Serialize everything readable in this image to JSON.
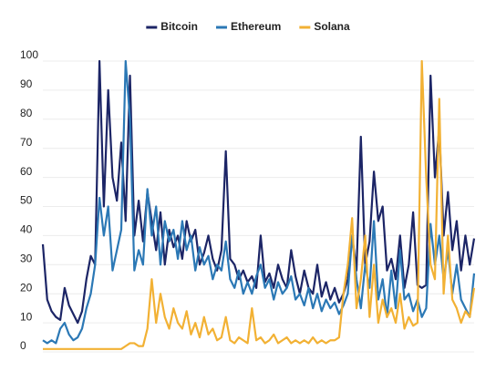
{
  "chart_data": {
    "type": "line",
    "categories": [
      null,
      null,
      null,
      null,
      null,
      null,
      null,
      null,
      null,
      null,
      null,
      null,
      null,
      null,
      null,
      null,
      null,
      null,
      null,
      null,
      null,
      null,
      null,
      null,
      null,
      null,
      null,
      null,
      null,
      null,
      null,
      null,
      null,
      null,
      null,
      null,
      null,
      null,
      null,
      null,
      null,
      null,
      null,
      null,
      null,
      null,
      null,
      null,
      null,
      null,
      null,
      null,
      null,
      null,
      null,
      null,
      null,
      null,
      null,
      null,
      null,
      null,
      null,
      null,
      null,
      null,
      null,
      null,
      null,
      null,
      null,
      null,
      null,
      null,
      null,
      null,
      null,
      null,
      null,
      null,
      null,
      null,
      null,
      null,
      null,
      null,
      null,
      null,
      null,
      null,
      null,
      null,
      null,
      null,
      null,
      null,
      null,
      null,
      null,
      null
    ],
    "series": [
      {
        "name": "Bitcoin",
        "color": "#1c2566",
        "values": [
          37,
          18,
          14,
          12,
          11,
          22,
          16,
          13,
          10,
          14,
          25,
          33,
          30,
          100,
          50,
          90,
          60,
          52,
          72,
          45,
          95,
          40,
          52,
          38,
          55,
          45,
          35,
          48,
          30,
          42,
          36,
          40,
          32,
          45,
          38,
          42,
          30,
          34,
          40,
          32,
          28,
          35,
          69,
          32,
          30,
          25,
          28,
          24,
          26,
          22,
          40,
          24,
          27,
          22,
          30,
          25,
          22,
          35,
          26,
          20,
          28,
          22,
          20,
          30,
          19,
          24,
          18,
          22,
          17,
          20,
          25,
          40,
          28,
          74,
          30,
          38,
          62,
          45,
          50,
          28,
          32,
          25,
          40,
          22,
          30,
          48,
          23,
          22,
          23,
          95,
          60,
          77,
          40,
          55,
          35,
          45,
          28,
          40,
          30,
          39
        ]
      },
      {
        "name": "Ethereum",
        "color": "#2b78b5",
        "values": [
          4,
          3,
          4,
          3,
          8,
          10,
          6,
          4,
          5,
          8,
          15,
          20,
          30,
          53,
          40,
          50,
          28,
          35,
          42,
          100,
          80,
          28,
          35,
          30,
          56,
          40,
          50,
          30,
          45,
          38,
          42,
          32,
          45,
          35,
          40,
          28,
          36,
          30,
          33,
          25,
          30,
          28,
          38,
          25,
          22,
          28,
          20,
          24,
          20,
          26,
          30,
          22,
          25,
          18,
          24,
          20,
          22,
          26,
          18,
          20,
          16,
          22,
          15,
          20,
          14,
          18,
          15,
          17,
          13,
          16,
          20,
          40,
          25,
          15,
          30,
          22,
          45,
          18,
          25,
          12,
          28,
          15,
          35,
          18,
          20,
          14,
          18,
          12,
          15,
          44,
          30,
          40,
          25,
          35,
          20,
          30,
          18,
          15,
          12,
          27
        ]
      },
      {
        "name": "Solana",
        "color": "#f2b134",
        "values": [
          1,
          1,
          1,
          1,
          1,
          1,
          1,
          1,
          1,
          1,
          1,
          1,
          1,
          1,
          1,
          1,
          1,
          1,
          1,
          2,
          3,
          3,
          2,
          2,
          8,
          25,
          10,
          20,
          12,
          8,
          15,
          10,
          8,
          14,
          6,
          10,
          5,
          12,
          6,
          8,
          4,
          5,
          12,
          4,
          3,
          5,
          4,
          3,
          15,
          4,
          5,
          3,
          4,
          6,
          3,
          4,
          5,
          3,
          4,
          3,
          4,
          3,
          5,
          3,
          4,
          3,
          4,
          4,
          5,
          20,
          30,
          46,
          15,
          25,
          40,
          12,
          30,
          10,
          18,
          12,
          15,
          10,
          20,
          8,
          12,
          9,
          10,
          100,
          60,
          30,
          25,
          87,
          20,
          40,
          18,
          15,
          10,
          14,
          12,
          22
        ]
      }
    ],
    "ylim": [
      0,
      100
    ],
    "yticks": [
      0,
      10,
      20,
      30,
      40,
      50,
      60,
      70,
      80,
      90,
      100
    ],
    "grid": true,
    "legend": "top"
  }
}
